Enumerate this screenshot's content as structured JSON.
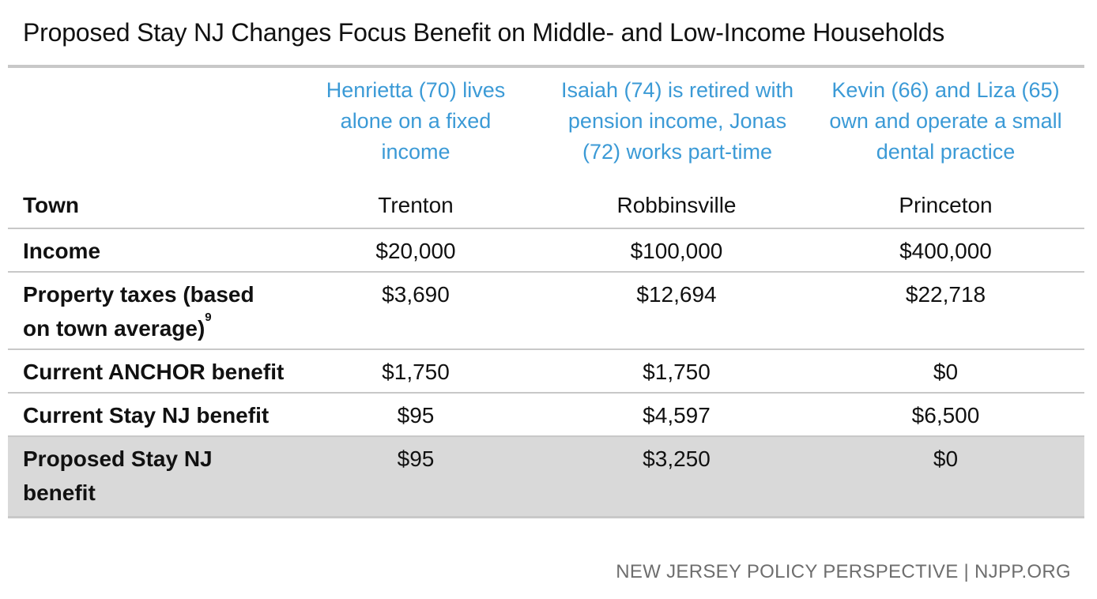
{
  "title": "Proposed Stay NJ Changes Focus Benefit on Middle- and Low-Income Households",
  "colors": {
    "persona_text": "#3b9ad6",
    "rule": "#c8c8c8",
    "highlight_row": "#d9d9d9",
    "footer_text": "#6e6e6e"
  },
  "personas": [
    "Henrietta (70) lives alone on a fixed income",
    "Isaiah (74) is retired with pension income, Jonas (72) works part-time",
    "Kevin (66) and Liza (65) own and operate a small dental practice"
  ],
  "rows": [
    {
      "label": "Town",
      "values": [
        "Trenton",
        "Robbinsville",
        "Princeton"
      ]
    },
    {
      "label": "Income",
      "values": [
        "$20,000",
        "$100,000",
        "$400,000"
      ]
    },
    {
      "label": "Property taxes (based on town average)",
      "footnote": "9",
      "values": [
        "$3,690",
        "$12,694",
        "$22,718"
      ]
    },
    {
      "label": "Current ANCHOR benefit",
      "values": [
        "$1,750",
        "$1,750",
        "$0"
      ]
    },
    {
      "label": "Current Stay NJ benefit",
      "values": [
        "$95",
        "$4,597",
        "$6,500"
      ]
    },
    {
      "label": "Proposed Stay NJ benefit",
      "values": [
        "$95",
        "$3,250",
        "$0"
      ]
    }
  ],
  "footer": "NEW JERSEY POLICY PERSPECTIVE | NJPP.ORG"
}
